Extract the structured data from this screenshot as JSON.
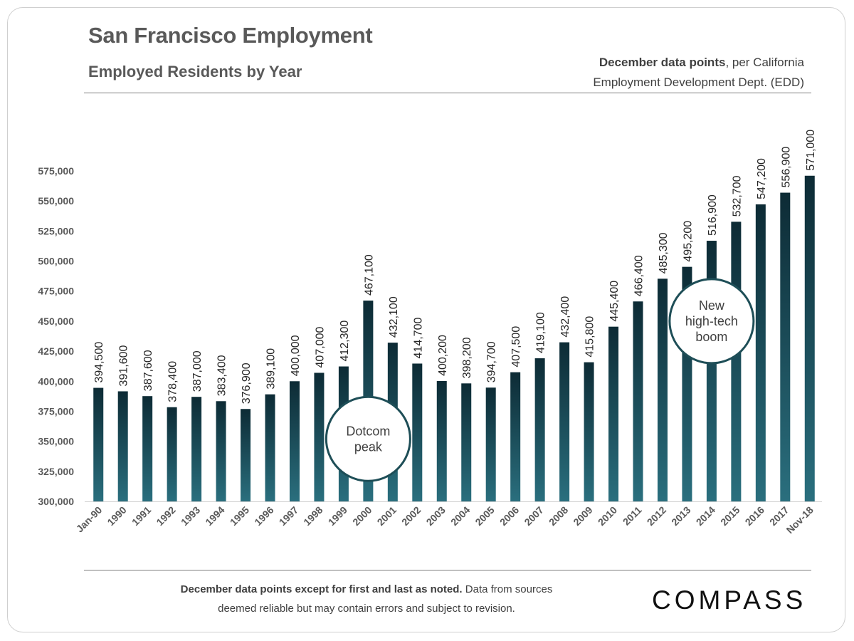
{
  "header": {
    "title": "San Francisco Employment",
    "subtitle": "Employed Residents by Year",
    "source_bold": "December data points",
    "source_rest": ", per California",
    "source_line2": "Employment Development Dept. (EDD)"
  },
  "footer": {
    "bold": "December data points except for first and last as noted.",
    "rest": " Data from sources",
    "line2": "deemed reliable but may contain errors and subject to revision."
  },
  "brand": {
    "logo": "COMPASS"
  },
  "colors": {
    "bar_top": "#0d2b35",
    "bar_bottom": "#2a6f7e",
    "callout_border": "#1e4e57"
  },
  "chart_data": {
    "type": "bar",
    "title": "San Francisco Employment",
    "subtitle": "Employed Residents by Year",
    "categories": [
      "Jan-90",
      "1990",
      "1991",
      "1992",
      "1993",
      "1994",
      "1995",
      "1996",
      "1997",
      "1998",
      "1999",
      "2000",
      "2001",
      "2002",
      "2003",
      "2004",
      "2005",
      "2006",
      "2007",
      "2008",
      "2009",
      "2010",
      "2011",
      "2012",
      "2013",
      "2014",
      "2015",
      "2016",
      "2017",
      "Nov-18"
    ],
    "values": [
      394500,
      391600,
      387600,
      378400,
      387000,
      383400,
      376900,
      389100,
      400000,
      407000,
      412300,
      467100,
      432100,
      414700,
      400200,
      398200,
      394700,
      407500,
      419100,
      432400,
      415800,
      445400,
      466400,
      485300,
      495200,
      516900,
      532700,
      547200,
      556900,
      571000
    ],
    "data_labels": [
      "394,500",
      "391,600",
      "387,600",
      "378,400",
      "387,000",
      "383,400",
      "376,900",
      "389,100",
      "400,000",
      "407,000",
      "412,300",
      "467,100",
      "432,100",
      "414,700",
      "400,200",
      "398,200",
      "394,700",
      "407,500",
      "419,100",
      "432,400",
      "415,800",
      "445,400",
      "466,400",
      "485,300",
      "495,200",
      "516,900",
      "532,700",
      "547,200",
      "556,900",
      "571,000"
    ],
    "ylim": [
      300000,
      575000
    ],
    "yticks": [
      300000,
      325000,
      350000,
      375000,
      400000,
      425000,
      450000,
      475000,
      500000,
      525000,
      550000,
      575000
    ],
    "ytick_labels": [
      "300,000",
      "325,000",
      "350,000",
      "375,000",
      "400,000",
      "425,000",
      "450,000",
      "475,000",
      "500,000",
      "525,000",
      "550,000",
      "575,000"
    ],
    "grid": false,
    "annotations": [
      {
        "lines": [
          "Dotcom",
          "peak"
        ],
        "category": "2000",
        "value": 352000
      },
      {
        "lines": [
          "New",
          "high-tech",
          "boom"
        ],
        "category": "2014",
        "value": 450000
      }
    ]
  }
}
